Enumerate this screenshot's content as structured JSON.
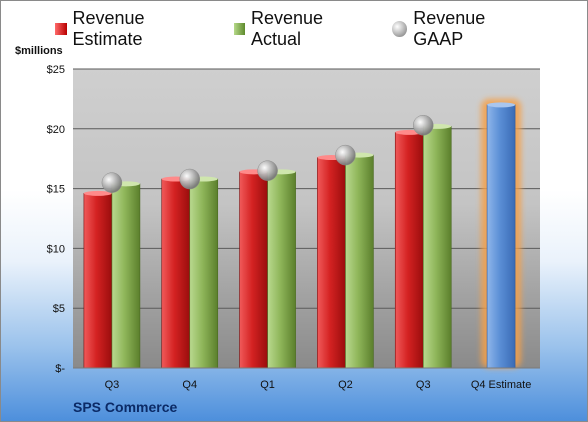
{
  "chart_data": {
    "type": "bar",
    "ylabel": "$millions",
    "ylim": [
      0,
      25
    ],
    "yticks": [
      0,
      5,
      10,
      15,
      20,
      25
    ],
    "ytick_labels": [
      "$-",
      "$5",
      "$10",
      "$15",
      "$20",
      "$25"
    ],
    "categories": [
      "Q3",
      "Q4",
      "Q1",
      "Q2",
      "Q3",
      "Q4 Estimate"
    ],
    "series": [
      {
        "name": "Revenue Estimate",
        "values": [
          14.6,
          15.8,
          16.4,
          17.6,
          19.7,
          22.0
        ],
        "colors": [
          "#d32020",
          "#d32020",
          "#d32020",
          "#d32020",
          "#d32020",
          "#5b8fd6"
        ]
      },
      {
        "name": "Revenue Actual",
        "values": [
          15.4,
          15.8,
          16.4,
          17.8,
          20.2,
          null
        ],
        "color": "#8fb65a"
      },
      {
        "name": "Revenue GAAP",
        "values": [
          15.5,
          15.8,
          16.5,
          17.8,
          20.3,
          null
        ],
        "color": "#a8a8a8"
      }
    ],
    "legend": "top",
    "grid": true
  },
  "footer": {
    "company": "SPS Commerce"
  },
  "colors": {
    "estimate": "#d32020",
    "actual": "#8fb65a",
    "gaap": "#a8a8a8",
    "forecast": "#5b8fd6",
    "highlight": "#f5a04a"
  }
}
